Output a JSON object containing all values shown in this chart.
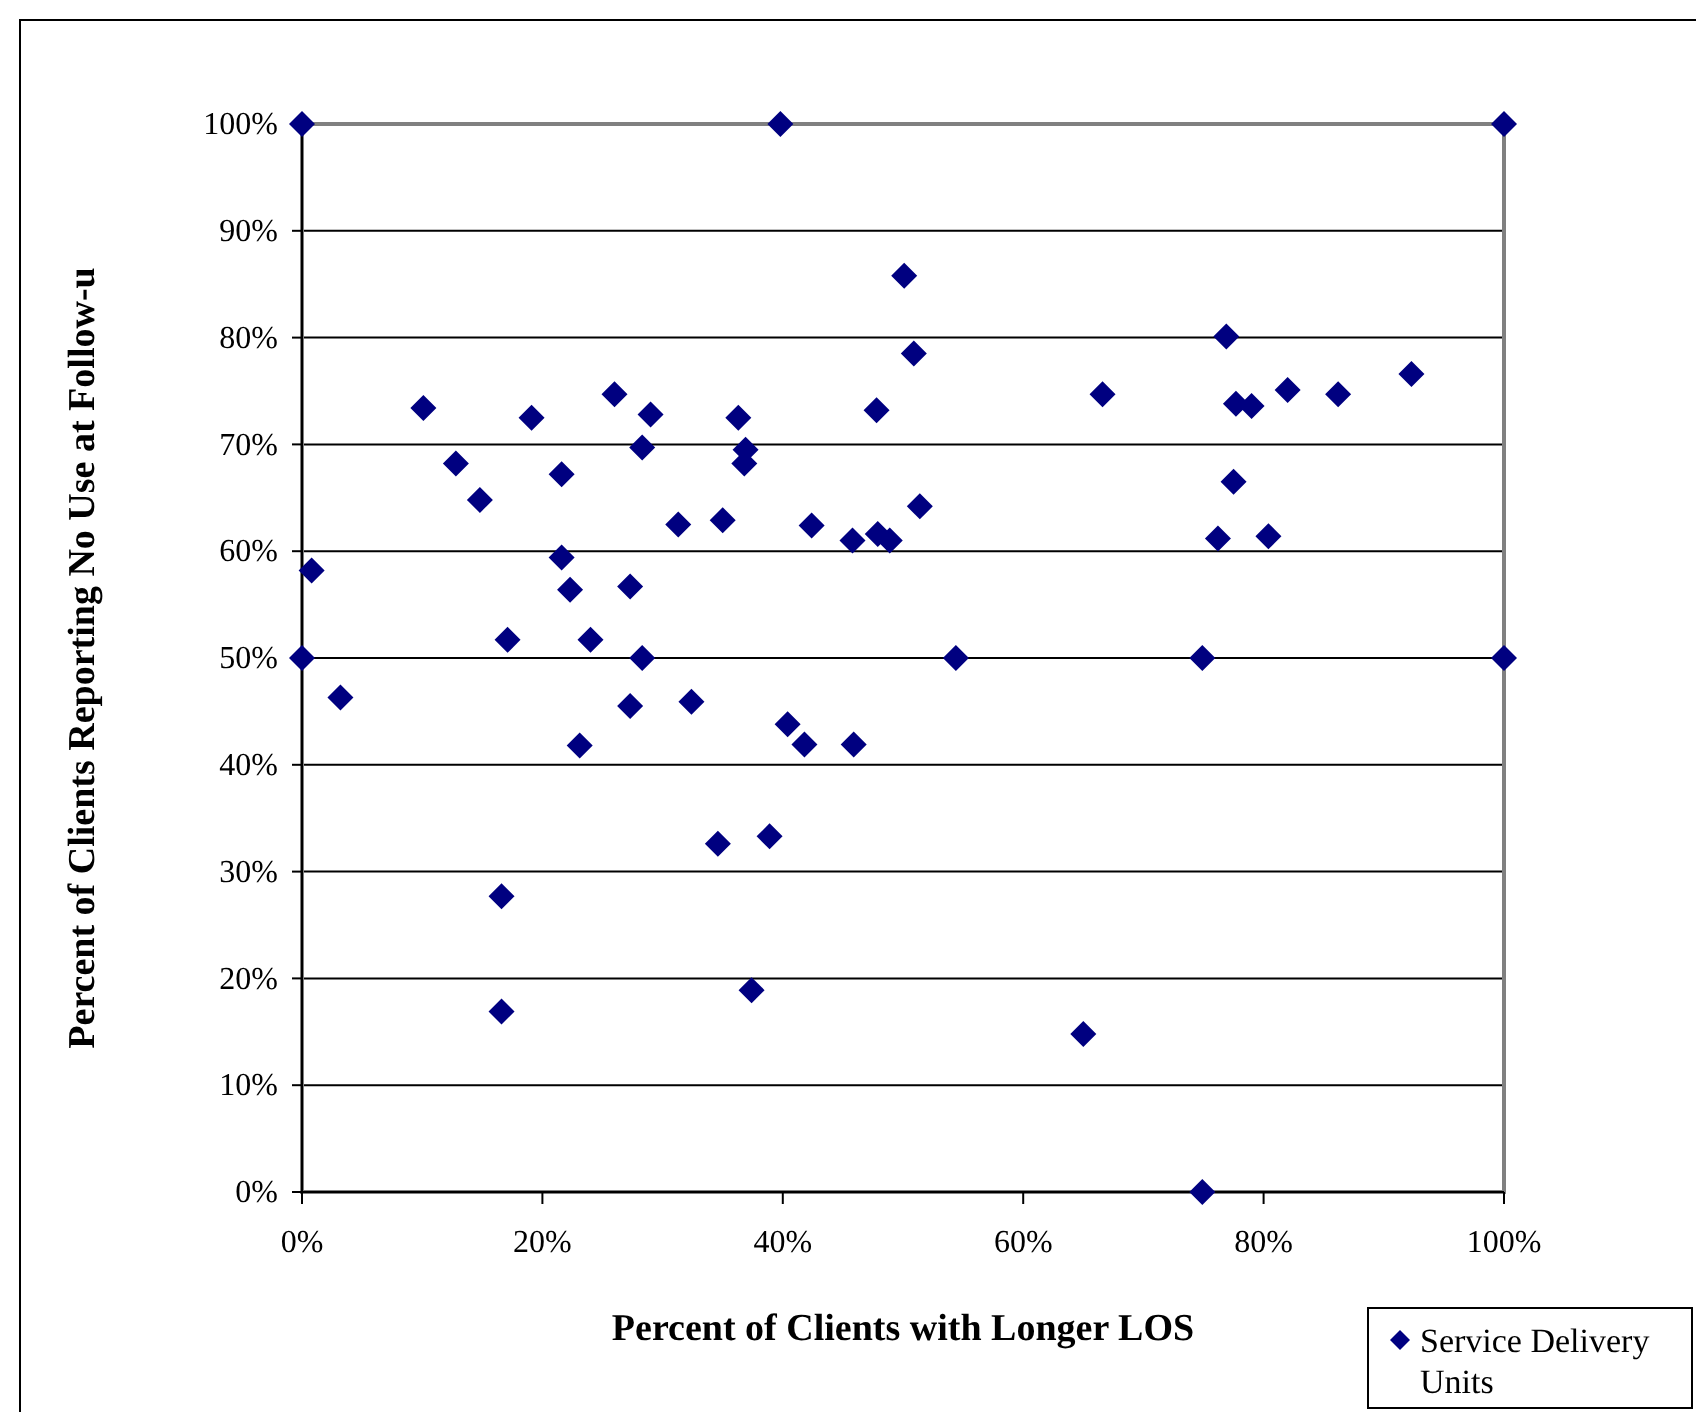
{
  "chart_data": {
    "type": "scatter",
    "xlabel": "Percent of Clients with Longer LOS",
    "ylabel": "Percent of Clients Reporting No Use at Follow-u",
    "xlim": [
      0,
      100
    ],
    "ylim": [
      0,
      100
    ],
    "xticks": [
      {
        "value": 0,
        "label": "0%"
      },
      {
        "value": 20,
        "label": "20%"
      },
      {
        "value": 40,
        "label": "40%"
      },
      {
        "value": 60,
        "label": "60%"
      },
      {
        "value": 80,
        "label": "80%"
      },
      {
        "value": 100,
        "label": "100%"
      }
    ],
    "yticks": [
      {
        "value": 0,
        "label": "0%"
      },
      {
        "value": 10,
        "label": "10%"
      },
      {
        "value": 20,
        "label": "20%"
      },
      {
        "value": 30,
        "label": "30%"
      },
      {
        "value": 40,
        "label": "40%"
      },
      {
        "value": 50,
        "label": "50%"
      },
      {
        "value": 60,
        "label": "60%"
      },
      {
        "value": 70,
        "label": "70%"
      },
      {
        "value": 80,
        "label": "80%"
      },
      {
        "value": 90,
        "label": "90%"
      },
      {
        "value": 100,
        "label": "100%"
      }
    ],
    "grid": "y",
    "legend": "bottom right",
    "marker": "diamond",
    "series": [
      {
        "name": "Service Delivery Units",
        "color": "#000080",
        "x": [
          0,
          39.8,
          100,
          50.1,
          76.9,
          50.9,
          66.6,
          77.7,
          79,
          82,
          86.2,
          92.3,
          77.5,
          76.2,
          80.4,
          10.1,
          12.8,
          14.8,
          19.1,
          21.6,
          26,
          29,
          28.3,
          36.3,
          36.9,
          36.8,
          31.3,
          35,
          42.4,
          47.9,
          48.9,
          45.8,
          47.8,
          51.4,
          21.6,
          0.8,
          22.3,
          27.3,
          17.1,
          24,
          0,
          28.3,
          54.4,
          74.9,
          100,
          3.2,
          27.3,
          32.4,
          40.4,
          41.8,
          23.1,
          45.9,
          34.6,
          38.9,
          16.6,
          16.6,
          37.4,
          65,
          74.9
        ],
        "values": [
          100,
          100,
          100,
          85.8,
          80.1,
          78.5,
          74.7,
          73.8,
          73.6,
          75.1,
          74.7,
          76.6,
          66.5,
          61.2,
          61.4,
          73.4,
          68.2,
          64.8,
          72.5,
          67.2,
          74.7,
          72.8,
          69.7,
          72.5,
          69.5,
          68.2,
          62.5,
          62.9,
          62.4,
          61.6,
          61,
          61,
          73.2,
          64.2,
          59.4,
          58.2,
          56.4,
          56.7,
          51.7,
          51.7,
          50,
          50,
          50,
          50,
          50,
          46.3,
          45.5,
          45.9,
          43.8,
          41.9,
          41.8,
          41.9,
          32.6,
          33.3,
          27.7,
          16.9,
          18.9,
          14.8,
          0
        ]
      }
    ]
  }
}
